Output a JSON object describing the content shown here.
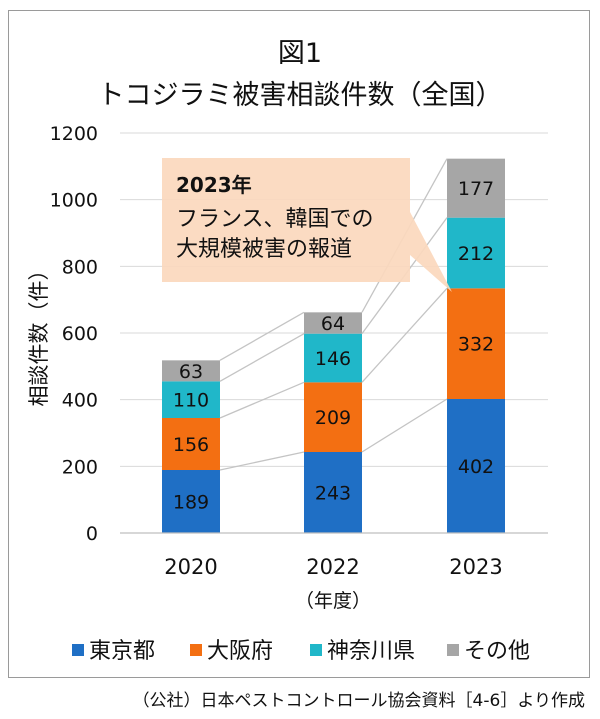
{
  "chart_data": {
    "type": "bar",
    "stacked": true,
    "title_line1": "図1",
    "title_line2": "トコジラミ被害相談件数（全国）",
    "xlabel": "（年度）",
    "ylabel": "相談件数（件）",
    "ylim": [
      0,
      1200
    ],
    "yticks": [
      0,
      200,
      400,
      600,
      800,
      1000,
      1200
    ],
    "grid": true,
    "categories": [
      "2020",
      "2022",
      "2023"
    ],
    "series": [
      {
        "name": "東京都",
        "color": "#1f6fc5",
        "values": [
          189,
          243,
          402
        ]
      },
      {
        "name": "大阪府",
        "color": "#f36f12",
        "values": [
          156,
          209,
          332
        ]
      },
      {
        "name": "神奈川県",
        "color": "#20b7c9",
        "values": [
          110,
          146,
          212
        ]
      },
      {
        "name": "その他",
        "color": "#a6a6a6",
        "values": [
          63,
          64,
          177
        ]
      }
    ],
    "legend_position": "bottom",
    "annotation": {
      "title": "2023年",
      "lines": [
        "フランス、韓国での",
        "大規模被害の報道"
      ],
      "fill": "#fbd8bd"
    }
  },
  "source": "（公社）日本ペストコントロール協会資料［4-6］より作成"
}
